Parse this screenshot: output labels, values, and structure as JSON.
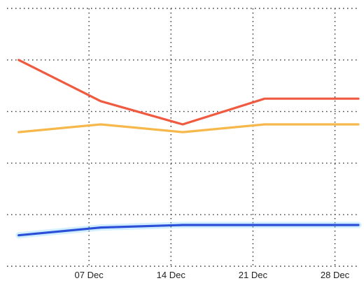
{
  "chart_data": {
    "type": "line",
    "x_axis": {
      "type": "date",
      "year": 2021,
      "tick_labels": [
        "07 Dec",
        "14 Dec",
        "21 Dec",
        "28 Dec"
      ],
      "tick_dates": [
        "2021-12-07",
        "2021-12-14",
        "2021-12-21",
        "2021-12-28"
      ],
      "range": [
        "2021-11-30",
        "2021-12-30"
      ]
    },
    "y_axis": {
      "tick_labels": [],
      "range": [
        0,
        100
      ],
      "grid_values": [
        0,
        20,
        40,
        60,
        80,
        100
      ]
    },
    "grid": true,
    "legend": "none",
    "series": [
      {
        "color": "#f05a40",
        "glow": false,
        "points": [
          {
            "x": "2021-12-01",
            "y": 80
          },
          {
            "x": "2021-12-08",
            "y": 64
          },
          {
            "x": "2021-12-15",
            "y": 55
          },
          {
            "x": "2021-12-22",
            "y": 65
          },
          {
            "x": "2021-12-30",
            "y": 65
          }
        ]
      },
      {
        "color": "#f7b84b",
        "glow": false,
        "points": [
          {
            "x": "2021-12-01",
            "y": 52
          },
          {
            "x": "2021-12-08",
            "y": 55
          },
          {
            "x": "2021-12-15",
            "y": 52
          },
          {
            "x": "2021-12-22",
            "y": 55
          },
          {
            "x": "2021-12-30",
            "y": 55
          }
        ]
      },
      {
        "color": "#2b4fd8",
        "glow": true,
        "glow_color": "#7fd0ff",
        "points": [
          {
            "x": "2021-12-01",
            "y": 12
          },
          {
            "x": "2021-12-08",
            "y": 15
          },
          {
            "x": "2021-12-15",
            "y": 16
          },
          {
            "x": "2021-12-22",
            "y": 16
          },
          {
            "x": "2021-12-30",
            "y": 16
          }
        ]
      }
    ]
  }
}
